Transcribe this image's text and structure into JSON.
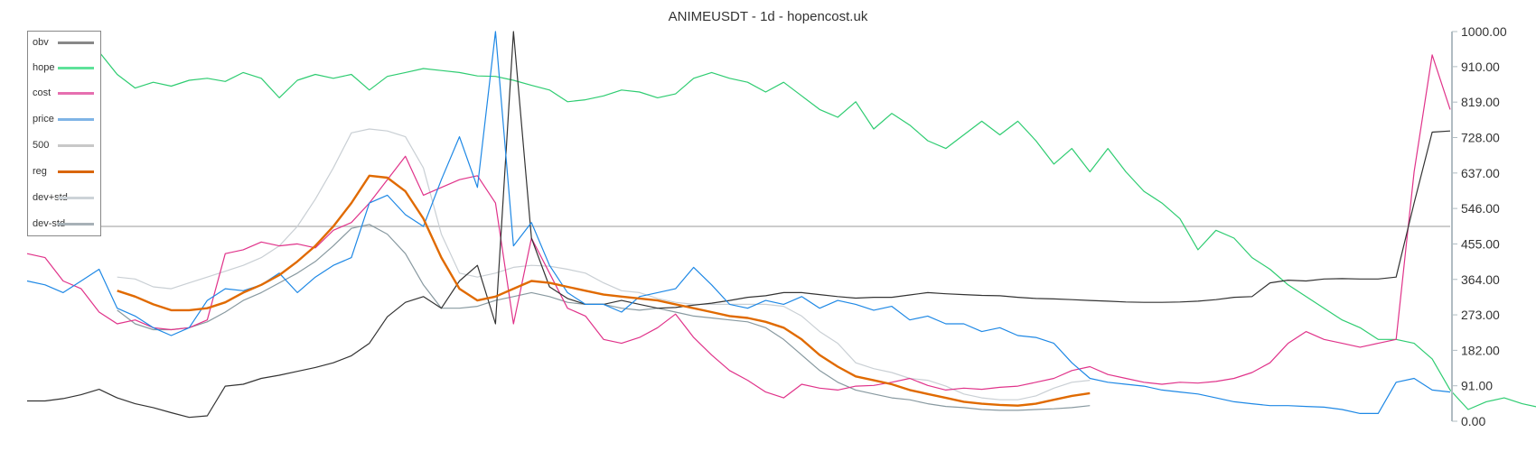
{
  "chart_data": {
    "type": "line",
    "title": "ANIMEUSDT - 1d - hopencost.uk",
    "xlabel": "",
    "ylabel": "",
    "ylim": [
      0,
      1000
    ],
    "yticks": [
      "0.00",
      "91.00",
      "182.00",
      "273.00",
      "364.00",
      "455.00",
      "546.00",
      "637.00",
      "728.00",
      "819.00",
      "910.00",
      "1000.00"
    ],
    "ytick_values": [
      0,
      91,
      182,
      273,
      364,
      455,
      546,
      637,
      728,
      819,
      910,
      1000
    ],
    "grid": false,
    "legend_position": "upper left",
    "x_count": 80,
    "series": [
      {
        "name": "obv",
        "color": "#333333",
        "width": 1.2,
        "start": 0,
        "values": [
          52,
          52,
          58,
          68,
          82,
          60,
          45,
          35,
          22,
          10,
          14,
          90,
          95,
          110,
          118,
          128,
          138,
          150,
          168,
          200,
          268,
          305,
          320,
          290,
          360,
          400,
          250,
          1000,
          470,
          345,
          315,
          300,
          300,
          310,
          300,
          290,
          292,
          298,
          303,
          310,
          318,
          322,
          330,
          330,
          325,
          320,
          316,
          318,
          318,
          324,
          330,
          327,
          325,
          323,
          322,
          318,
          315,
          314,
          312,
          310,
          308,
          306,
          305,
          305,
          306,
          308,
          312,
          318,
          320,
          355,
          362,
          360,
          365,
          366,
          365,
          365,
          370,
          560,
          742,
          745
        ]
      },
      {
        "name": "hope",
        "color": "#2ecc71",
        "width": 1.2,
        "start": 2,
        "values": [
          960,
          958,
          948,
          890,
          855,
          870,
          860,
          875,
          880,
          872,
          895,
          880,
          830,
          875,
          890,
          880,
          890,
          850,
          885,
          895,
          905,
          900,
          895,
          886,
          885,
          875,
          862,
          850,
          820,
          825,
          835,
          850,
          845,
          830,
          840,
          880,
          895,
          880,
          870,
          845,
          870,
          835,
          800,
          780,
          820,
          750,
          790,
          760,
          720,
          700,
          735,
          770,
          735,
          770,
          720,
          660,
          700,
          640,
          700,
          640,
          590,
          560,
          520,
          440,
          490,
          470,
          420,
          390,
          350,
          320,
          290,
          260,
          240,
          210,
          210,
          200,
          160,
          80,
          30,
          50,
          60,
          45,
          35,
          42,
          38,
          55,
          65
        ]
      },
      {
        "name": "cost",
        "color": "#e0338a",
        "width": 1.2,
        "start": 0,
        "values": [
          430,
          420,
          360,
          340,
          280,
          250,
          260,
          240,
          235,
          240,
          260,
          430,
          440,
          460,
          450,
          455,
          445,
          490,
          510,
          560,
          620,
          680,
          580,
          600,
          620,
          630,
          560,
          250,
          470,
          380,
          290,
          270,
          210,
          200,
          215,
          240,
          275,
          215,
          170,
          130,
          105,
          75,
          60,
          95,
          85,
          80,
          90,
          92,
          100,
          110,
          92,
          80,
          85,
          82,
          87,
          90,
          100,
          110,
          130,
          140,
          120,
          110,
          100,
          95,
          100,
          98,
          102,
          110,
          125,
          150,
          200,
          230,
          210,
          200,
          190,
          200,
          210,
          640,
          940,
          800
        ]
      },
      {
        "name": "price",
        "color": "#1e88e5",
        "width": 1.2,
        "start": 0,
        "values": [
          360,
          350,
          330,
          360,
          390,
          290,
          270,
          240,
          220,
          240,
          310,
          340,
          335,
          350,
          380,
          330,
          370,
          400,
          420,
          560,
          580,
          530,
          500,
          620,
          730,
          600,
          1000,
          450,
          510,
          400,
          330,
          300,
          300,
          280,
          320,
          330,
          340,
          395,
          350,
          300,
          290,
          310,
          300,
          320,
          290,
          310,
          300,
          285,
          295,
          260,
          270,
          250,
          250,
          230,
          240,
          220,
          215,
          200,
          150,
          110,
          100,
          95,
          90,
          80,
          75,
          70,
          60,
          50,
          45,
          40,
          40,
          38,
          36,
          30,
          20,
          20,
          100,
          110,
          80,
          75
        ]
      },
      {
        "name": "500",
        "color": "#bbbbbb",
        "width": 1.6,
        "start": 0,
        "values": [
          500,
          500,
          500,
          500,
          500,
          500,
          500,
          500,
          500,
          500,
          500,
          500,
          500,
          500,
          500,
          500,
          500,
          500,
          500,
          500,
          500,
          500,
          500,
          500,
          500,
          500,
          500,
          500,
          500,
          500,
          500,
          500,
          500,
          500,
          500,
          500,
          500,
          500,
          500,
          500,
          500,
          500,
          500,
          500,
          500,
          500,
          500,
          500,
          500,
          500,
          500,
          500,
          500,
          500,
          500,
          500,
          500,
          500,
          500,
          500,
          500,
          500,
          500,
          500,
          500,
          500,
          500,
          500,
          500,
          500,
          500,
          500,
          500,
          500,
          500,
          500,
          500,
          500,
          500,
          500
        ]
      },
      {
        "name": "reg",
        "color": "#e06a00",
        "width": 2.4,
        "start": 5,
        "values": [
          335,
          320,
          300,
          285,
          285,
          290,
          305,
          330,
          350,
          375,
          410,
          450,
          500,
          560,
          630,
          625,
          590,
          520,
          420,
          340,
          310,
          320,
          340,
          360,
          355,
          345,
          335,
          325,
          320,
          315,
          310,
          300,
          290,
          280,
          270,
          265,
          255,
          240,
          210,
          170,
          140,
          115,
          105,
          95,
          80,
          70,
          60,
          50,
          45,
          42,
          40,
          45,
          55,
          65,
          72
        ]
      },
      {
        "name": "dev+std",
        "color": "#c9cfd4",
        "width": 1.2,
        "start": 5,
        "values": [
          370,
          365,
          345,
          340,
          355,
          370,
          385,
          400,
          420,
          450,
          500,
          570,
          650,
          740,
          750,
          745,
          730,
          650,
          480,
          380,
          370,
          380,
          395,
          400,
          398,
          390,
          380,
          355,
          335,
          330,
          315,
          305,
          300,
          300,
          300,
          300,
          300,
          295,
          270,
          230,
          200,
          150,
          135,
          125,
          110,
          105,
          90,
          70,
          60,
          55,
          55,
          65,
          85,
          100,
          105
        ]
      },
      {
        "name": "dev-std",
        "color": "#8899a0",
        "width": 1.2,
        "start": 5,
        "values": [
          285,
          250,
          235,
          235,
          240,
          255,
          280,
          310,
          330,
          355,
          380,
          410,
          450,
          495,
          505,
          480,
          430,
          350,
          290,
          290,
          295,
          310,
          320,
          330,
          320,
          305,
          300,
          300,
          290,
          285,
          290,
          280,
          270,
          265,
          260,
          255,
          240,
          210,
          170,
          130,
          100,
          80,
          70,
          60,
          55,
          45,
          38,
          35,
          30,
          28,
          28,
          30,
          32,
          35,
          40
        ]
      }
    ]
  },
  "legend": {
    "items": [
      {
        "label": "obv",
        "color": "#888888"
      },
      {
        "label": "hope",
        "color": "#5ee29a"
      },
      {
        "label": "cost",
        "color": "#e66fb0"
      },
      {
        "label": "price",
        "color": "#7fb4e6"
      },
      {
        "label": "500",
        "color": "#c8c8c8"
      },
      {
        "label": "reg",
        "color": "#d9660a"
      },
      {
        "label": "dev+std",
        "color": "#ccd3d8"
      },
      {
        "label": "dev-std",
        "color": "#a7b1b7"
      }
    ]
  },
  "axis": {
    "color": "#b0bcc2"
  }
}
